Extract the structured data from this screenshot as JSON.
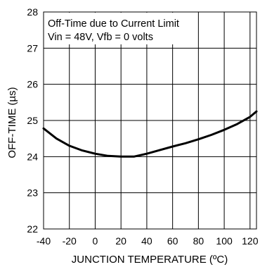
{
  "chart_data": {
    "type": "line",
    "title": "",
    "xlabel": "JUNCTION TEMPERATURE (ºC)",
    "ylabel": "OFF-TIME (µs)",
    "xlim": [
      -40,
      125
    ],
    "ylim": [
      22,
      28
    ],
    "x_ticks": [
      -40,
      -20,
      0,
      20,
      40,
      60,
      80,
      100,
      120
    ],
    "y_ticks": [
      22,
      23,
      24,
      25,
      26,
      27,
      28
    ],
    "grid": true,
    "annotations": [
      "Off-Time due to Current Limit",
      "Vin = 48V, Vfb = 0 volts"
    ],
    "series": [
      {
        "x": [
          -40,
          -30,
          -20,
          -10,
          0,
          10,
          20,
          30,
          40,
          50,
          60,
          70,
          80,
          90,
          100,
          110,
          120,
          125
        ],
        "y": [
          24.78,
          24.5,
          24.3,
          24.17,
          24.08,
          24.02,
          24.0,
          24.0,
          24.08,
          24.18,
          24.28,
          24.37,
          24.48,
          24.6,
          24.74,
          24.9,
          25.1,
          25.25
        ]
      }
    ],
    "colors": {
      "line": "#000000",
      "grid": "#000000",
      "background": "#ffffff"
    }
  }
}
